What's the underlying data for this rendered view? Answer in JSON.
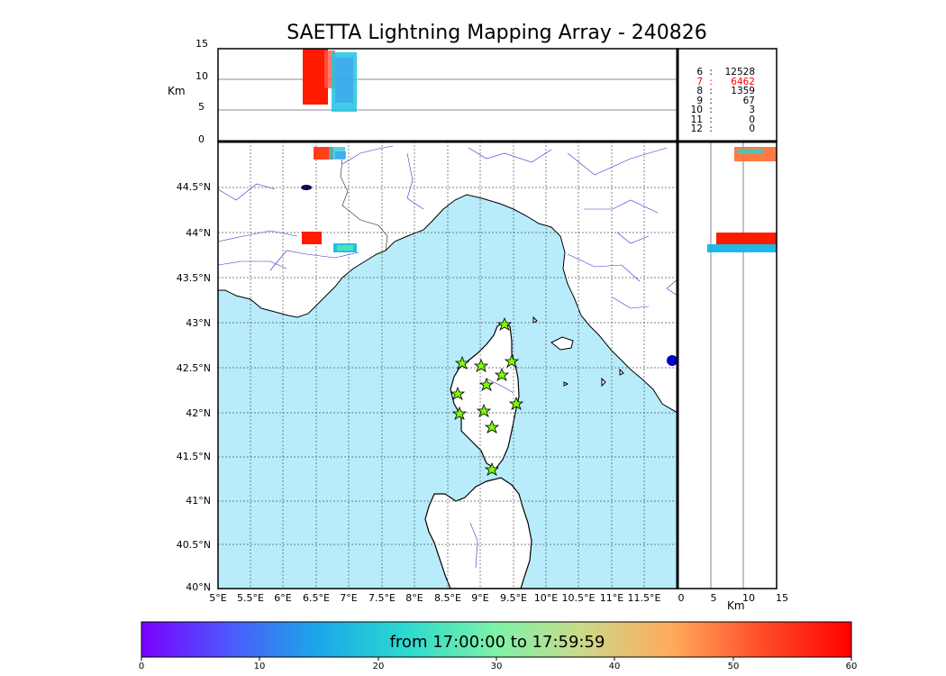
{
  "title": "SAETTA Lightning Mapping Array - 240826",
  "top_panel": {
    "ylabel": "Km",
    "yticks": [
      "15",
      "10",
      "5",
      "0"
    ]
  },
  "counts": [
    {
      "n": "6",
      "sep": ":",
      "v": "12528",
      "color": "#000000"
    },
    {
      "n": "7",
      "sep": ":",
      "v": "6462",
      "color": "#ff0000"
    },
    {
      "n": "8",
      "sep": ":",
      "v": "1359",
      "color": "#000000"
    },
    {
      "n": "9",
      "sep": ":",
      "v": "67",
      "color": "#000000"
    },
    {
      "n": "10",
      "sep": ":",
      "v": "3",
      "color": "#000000"
    },
    {
      "n": "11",
      "sep": ":",
      "v": "0",
      "color": "#000000"
    },
    {
      "n": "12",
      "sep": ":",
      "v": "0",
      "color": "#000000"
    }
  ],
  "map": {
    "lat_ticks": [
      "44.5°N",
      "44°N",
      "43.5°N",
      "43°N",
      "42.5°N",
      "42°N",
      "41.5°N",
      "41°N",
      "40.5°N",
      "40°N"
    ],
    "lon_ticks": [
      "5°E",
      "5.5°E",
      "6°E",
      "6.5°E",
      "7°E",
      "7.5°E",
      "8°E",
      "8.5°E",
      "9°E",
      "9.5°E",
      "10°E",
      "10.5°E",
      "11°E",
      "11.5°E"
    ],
    "sea_color": "#b8ecfb",
    "land_color": "#ffffff",
    "station_color": "#7fff00"
  },
  "side_panel": {
    "xlabel": "Km",
    "xticks": [
      "0",
      "5",
      "10",
      "15"
    ]
  },
  "colorbar": {
    "label": "from 17:00:00 to 17:59:59",
    "ticks": [
      "0",
      "10",
      "20",
      "30",
      "40",
      "50",
      "60"
    ],
    "colors": [
      "#7a00ff",
      "#4a5dfb",
      "#1aa8e8",
      "#2ad9cf",
      "#7ef2a8",
      "#cbd98a",
      "#ffa95a",
      "#ff4f2a",
      "#ff0000"
    ]
  }
}
